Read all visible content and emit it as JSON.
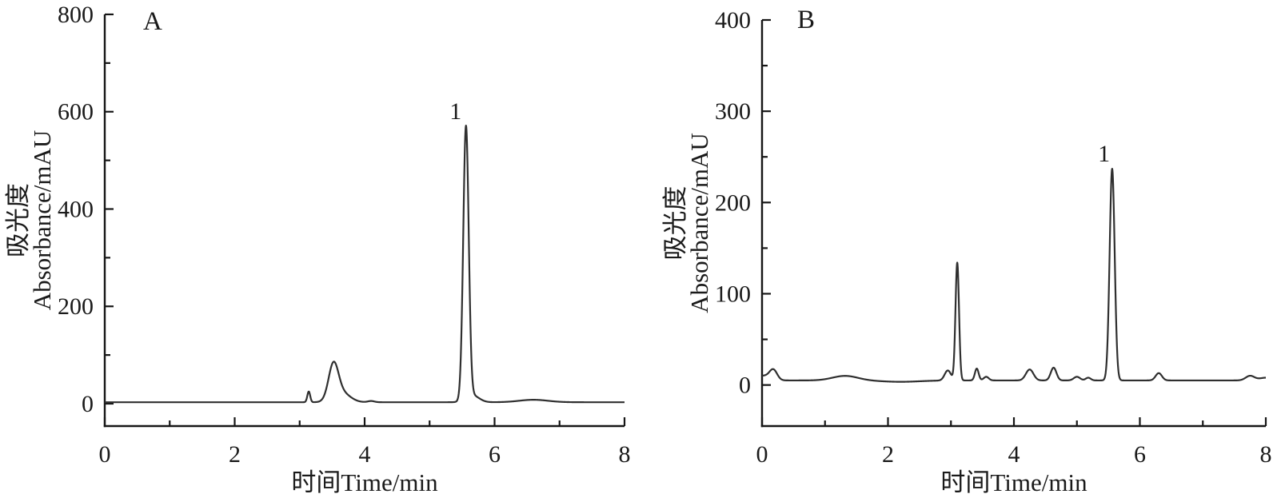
{
  "figure": {
    "description": "HPLC chromatograms, two panels",
    "background": "#ffffff",
    "curve_color": "#2f2f2f",
    "axis_color": "#161616",
    "text_color": "#1a1a1a"
  },
  "chart_data": [
    {
      "type": "line",
      "panel_label": "A",
      "xlabel": "时间Time/min",
      "ylabel_cn": "吸光度",
      "ylabel_en": "Absorbance/mAU",
      "xlim": [
        0,
        8
      ],
      "ylim": [
        -46,
        800
      ],
      "x_major_ticks": [
        0,
        2,
        4,
        6,
        8
      ],
      "x_minor_ticks": [
        1,
        3,
        5,
        7
      ],
      "y_major_ticks": [
        0,
        200,
        400,
        600,
        800
      ],
      "y_minor_ticks": [
        100,
        300,
        500,
        700
      ],
      "grid": false,
      "legend": "none",
      "baseline_mAU": 3,
      "gaussian_components": [
        {
          "center_min": 3.14,
          "height_mAU": 22,
          "sigma_min": 0.022
        },
        {
          "center_min": 3.52,
          "height_mAU": 70,
          "sigma_min": 0.075
        },
        {
          "center_min": 3.64,
          "height_mAU": 20,
          "sigma_min": 0.13
        },
        {
          "center_min": 4.1,
          "height_mAU": 2.5,
          "sigma_min": 0.05
        },
        {
          "center_min": 5.56,
          "height_mAU": 560,
          "sigma_min": 0.042
        },
        {
          "center_min": 5.66,
          "height_mAU": 14,
          "sigma_min": 0.1
        },
        {
          "center_min": 6.6,
          "height_mAU": 5,
          "sigma_min": 0.22
        }
      ],
      "main_peaks": [
        {
          "label": "1",
          "retention_time_min": 5.56,
          "apex_mAU": 572
        },
        {
          "label": "",
          "retention_time_min": 3.52,
          "apex_mAU": 87
        },
        {
          "label": "",
          "retention_time_min": 3.14,
          "apex_mAU": 25
        }
      ],
      "peak_annotations": [
        {
          "text": "1",
          "x_min": 5.4,
          "y_mAU": 585
        }
      ]
    },
    {
      "type": "line",
      "panel_label": "B",
      "xlabel": "时间Time/min",
      "ylabel_cn": "吸光度",
      "ylabel_en": "Absorbance/mAU",
      "xlim": [
        0,
        8
      ],
      "ylim": [
        -45,
        400
      ],
      "x_major_ticks": [
        0,
        2,
        4,
        6,
        8
      ],
      "x_minor_ticks": [
        1,
        3,
        5,
        7
      ],
      "y_major_ticks": [
        0,
        100,
        200,
        300,
        400
      ],
      "y_minor_ticks": [
        50,
        150,
        250,
        350
      ],
      "grid": false,
      "legend": "none",
      "baseline_mAU": 5,
      "gaussian_components": [
        {
          "center_min": 0.02,
          "height_mAU": 5,
          "sigma_min": 0.1
        },
        {
          "center_min": 0.18,
          "height_mAU": 11,
          "sigma_min": 0.06
        },
        {
          "center_min": 1.32,
          "height_mAU": 5,
          "sigma_min": 0.2
        },
        {
          "center_min": 2.2,
          "height_mAU": -1.5,
          "sigma_min": 0.3
        },
        {
          "center_min": 2.95,
          "height_mAU": 11,
          "sigma_min": 0.05
        },
        {
          "center_min": 3.1,
          "height_mAU": 129,
          "sigma_min": 0.028
        },
        {
          "center_min": 3.41,
          "height_mAU": 13,
          "sigma_min": 0.03
        },
        {
          "center_min": 3.56,
          "height_mAU": 4,
          "sigma_min": 0.04
        },
        {
          "center_min": 4.25,
          "height_mAU": 12,
          "sigma_min": 0.06
        },
        {
          "center_min": 4.63,
          "height_mAU": 14,
          "sigma_min": 0.045
        },
        {
          "center_min": 5.0,
          "height_mAU": 4,
          "sigma_min": 0.05
        },
        {
          "center_min": 5.18,
          "height_mAU": 3,
          "sigma_min": 0.04
        },
        {
          "center_min": 5.56,
          "height_mAU": 232,
          "sigma_min": 0.04
        },
        {
          "center_min": 6.3,
          "height_mAU": 8,
          "sigma_min": 0.05
        },
        {
          "center_min": 7.75,
          "height_mAU": 5,
          "sigma_min": 0.07
        },
        {
          "center_min": 8.0,
          "height_mAU": 3,
          "sigma_min": 0.1
        }
      ],
      "main_peaks": [
        {
          "label": "1",
          "retention_time_min": 5.56,
          "apex_mAU": 238
        },
        {
          "label": "",
          "retention_time_min": 3.1,
          "apex_mAU": 136
        }
      ],
      "peak_annotations": [
        {
          "text": "1",
          "x_min": 5.43,
          "y_mAU": 245
        }
      ]
    }
  ]
}
